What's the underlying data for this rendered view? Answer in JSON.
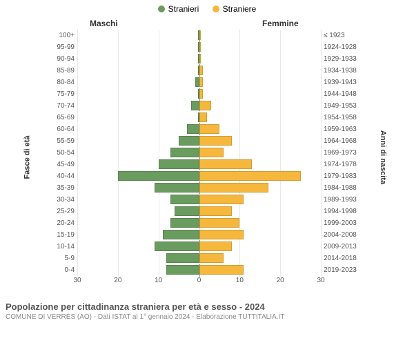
{
  "legend": {
    "male": {
      "label": "Stranieri",
      "color": "#6a9b5f"
    },
    "female": {
      "label": "Straniere",
      "color": "#f5b83d"
    }
  },
  "headers": {
    "left": "Maschi",
    "right": "Femmine"
  },
  "y_axis_labels": {
    "left": "Fasce di età",
    "right": "Anni di nascita"
  },
  "chart": {
    "type": "population-pyramid",
    "x_max": 30,
    "x_ticks": [
      30,
      20,
      10,
      0,
      10,
      20,
      30
    ],
    "grid_color": "#e8e8e8",
    "center_line_color": "#888888",
    "background_color": "#ffffff",
    "bar_color_male": "#6a9b5f",
    "bar_color_female": "#f5b83d",
    "label_fontsize": 10
  },
  "rows": [
    {
      "age": "100+",
      "birth": "≤ 1923",
      "m": 0,
      "f": 0
    },
    {
      "age": "95-99",
      "birth": "1924-1928",
      "m": 0,
      "f": 0
    },
    {
      "age": "90-94",
      "birth": "1929-1933",
      "m": 0,
      "f": 0
    },
    {
      "age": "85-89",
      "birth": "1934-1938",
      "m": 0,
      "f": 1
    },
    {
      "age": "80-84",
      "birth": "1939-1943",
      "m": 1,
      "f": 1
    },
    {
      "age": "75-79",
      "birth": "1944-1948",
      "m": 0,
      "f": 1
    },
    {
      "age": "70-74",
      "birth": "1949-1953",
      "m": 2,
      "f": 3
    },
    {
      "age": "65-69",
      "birth": "1954-1958",
      "m": 0,
      "f": 2
    },
    {
      "age": "60-64",
      "birth": "1959-1963",
      "m": 3,
      "f": 5
    },
    {
      "age": "55-59",
      "birth": "1964-1968",
      "m": 5,
      "f": 8
    },
    {
      "age": "50-54",
      "birth": "1969-1973",
      "m": 7,
      "f": 6
    },
    {
      "age": "45-49",
      "birth": "1974-1978",
      "m": 10,
      "f": 13
    },
    {
      "age": "40-44",
      "birth": "1979-1983",
      "m": 20,
      "f": 25
    },
    {
      "age": "35-39",
      "birth": "1984-1988",
      "m": 11,
      "f": 17
    },
    {
      "age": "30-34",
      "birth": "1989-1993",
      "m": 7,
      "f": 11
    },
    {
      "age": "25-29",
      "birth": "1994-1998",
      "m": 6,
      "f": 8
    },
    {
      "age": "20-24",
      "birth": "1999-2003",
      "m": 7,
      "f": 10
    },
    {
      "age": "15-19",
      "birth": "2004-2008",
      "m": 9,
      "f": 11
    },
    {
      "age": "10-14",
      "birth": "2009-2013",
      "m": 11,
      "f": 8
    },
    {
      "age": "5-9",
      "birth": "2014-2018",
      "m": 8,
      "f": 6
    },
    {
      "age": "0-4",
      "birth": "2019-2023",
      "m": 8,
      "f": 11
    }
  ],
  "footer": {
    "title": "Popolazione per cittadinanza straniera per età e sesso - 2024",
    "subtitle": "COMUNE DI VERRÈS (AO) - Dati ISTAT al 1° gennaio 2024 - Elaborazione TUTTITALIA.IT"
  }
}
